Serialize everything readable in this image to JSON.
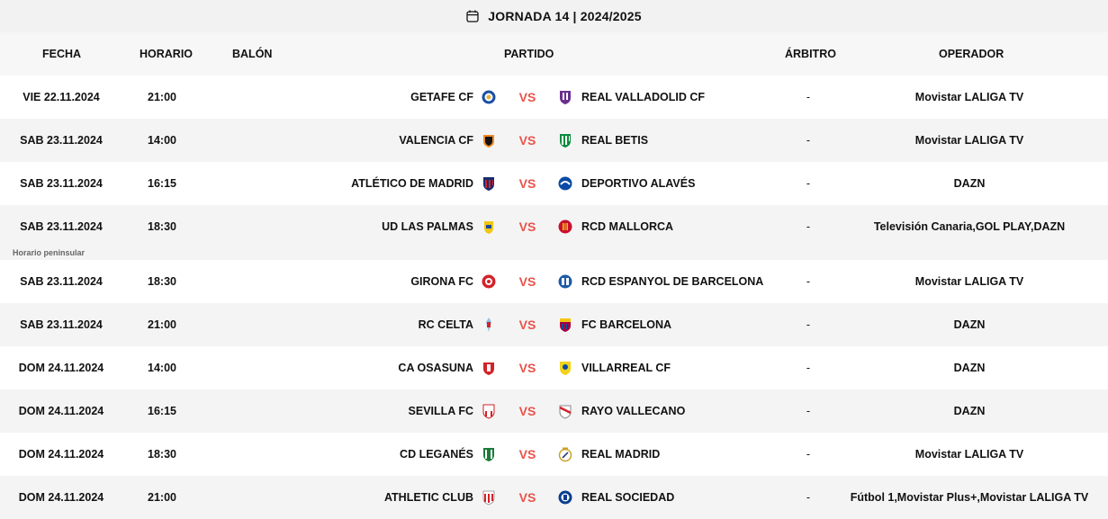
{
  "header": {
    "title": "JORNADA 14 | 2024/2025",
    "icon": "calendar-icon"
  },
  "columns": {
    "fecha": "FECHA",
    "horario": "HORARIO",
    "balon": "BALÓN",
    "partido": "PARTIDO",
    "arbitro": "ÁRBITRO",
    "operador": "OPERADOR"
  },
  "vs_label": "VS",
  "note_label": "Horario peninsular",
  "colors": {
    "vs": "#e8534a",
    "alt_row": "#f4f4f4",
    "title_bg": "#f2f2f2"
  },
  "matches": [
    {
      "date": "VIE 22.11.2024",
      "time": "21:00",
      "home": "GETAFE CF",
      "home_icon": "getafe-crest-icon",
      "away": "REAL VALLADOLID CF",
      "away_icon": "valladolid-crest-icon",
      "referee": "-",
      "operator": "Movistar LALIGA TV"
    },
    {
      "date": "SAB 23.11.2024",
      "time": "14:00",
      "home": "VALENCIA CF",
      "home_icon": "valencia-crest-icon",
      "away": "REAL BETIS",
      "away_icon": "betis-crest-icon",
      "referee": "-",
      "operator": "Movistar LALIGA TV"
    },
    {
      "date": "SAB 23.11.2024",
      "time": "16:15",
      "home": "ATLÉTICO DE MADRID",
      "home_icon": "atletico-crest-icon",
      "away": "DEPORTIVO ALAVÉS",
      "away_icon": "alaves-crest-icon",
      "referee": "-",
      "operator": "DAZN"
    },
    {
      "date": "SAB 23.11.2024",
      "time": "18:30",
      "home": "UD LAS PALMAS",
      "home_icon": "las-palmas-crest-icon",
      "away": "RCD MALLORCA",
      "away_icon": "mallorca-crest-icon",
      "referee": "-",
      "operator": "Televisión Canaria,GOL PLAY,DAZN"
    },
    {
      "date": "SAB 23.11.2024",
      "time": "18:30",
      "home": "GIRONA FC",
      "home_icon": "girona-crest-icon",
      "away": "RCD ESPANYOL DE BARCELONA",
      "away_icon": "espanyol-crest-icon",
      "referee": "-",
      "operator": "Movistar LALIGA TV"
    },
    {
      "date": "SAB 23.11.2024",
      "time": "21:00",
      "home": "RC CELTA",
      "home_icon": "celta-crest-icon",
      "away": "FC BARCELONA",
      "away_icon": "barcelona-crest-icon",
      "referee": "-",
      "operator": "DAZN"
    },
    {
      "date": "DOM 24.11.2024",
      "time": "14:00",
      "home": "CA OSASUNA",
      "home_icon": "osasuna-crest-icon",
      "away": "VILLARREAL CF",
      "away_icon": "villarreal-crest-icon",
      "referee": "-",
      "operator": "DAZN"
    },
    {
      "date": "DOM 24.11.2024",
      "time": "16:15",
      "home": "SEVILLA FC",
      "home_icon": "sevilla-crest-icon",
      "away": "RAYO VALLECANO",
      "away_icon": "rayo-crest-icon",
      "referee": "-",
      "operator": "DAZN"
    },
    {
      "date": "DOM 24.11.2024",
      "time": "18:30",
      "home": "CD LEGANÉS",
      "home_icon": "leganes-crest-icon",
      "away": "REAL MADRID",
      "away_icon": "real-madrid-crest-icon",
      "referee": "-",
      "operator": "Movistar LALIGA TV"
    },
    {
      "date": "DOM 24.11.2024",
      "time": "21:00",
      "home": "ATHLETIC CLUB",
      "home_icon": "athletic-crest-icon",
      "away": "REAL SOCIEDAD",
      "away_icon": "real-sociedad-crest-icon",
      "referee": "-",
      "operator": "Fútbol 1,Movistar Plus+,Movistar LALIGA TV"
    }
  ]
}
